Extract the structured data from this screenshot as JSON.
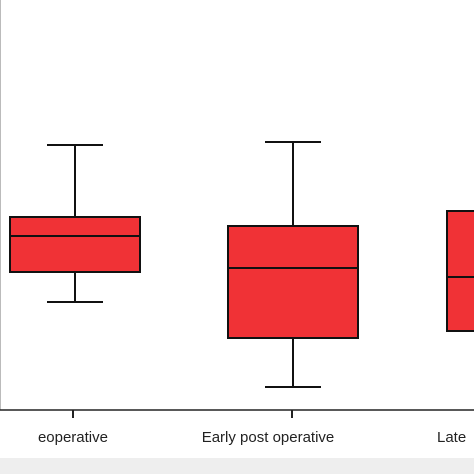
{
  "chart_data": {
    "type": "box",
    "categories": [
      "eoperative",
      "Early post operative",
      "Late"
    ],
    "series": [
      {
        "color": "#f03236",
        "whisker_low": [
          108,
          23,
          null
        ],
        "q1": [
          138,
          72,
          79
        ],
        "median": [
          174,
          142,
          133
        ],
        "q3": [
          193,
          184,
          199
        ],
        "whisker_high": [
          265,
          268,
          null
        ]
      }
    ],
    "ylim": [
      0,
      410
    ]
  }
}
